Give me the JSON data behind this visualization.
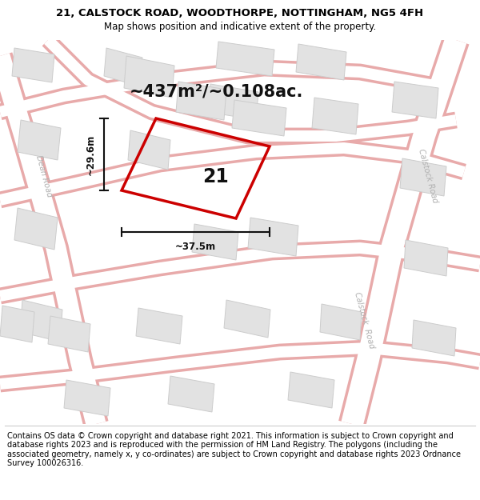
{
  "title_line1": "21, CALSTOCK ROAD, WOODTHORPE, NOTTINGHAM, NG5 4FH",
  "title_line2": "Map shows position and indicative extent of the property.",
  "area_text": "~437m²/~0.108ac.",
  "label_number": "21",
  "dim_width": "~37.5m",
  "dim_height": "~29.6m",
  "footer_text": "Contains OS data © Crown copyright and database right 2021. This information is subject to Crown copyright and database rights 2023 and is reproduced with the permission of HM Land Registry. The polygons (including the associated geometry, namely x, y co-ordinates) are subject to Crown copyright and database rights 2023 Ordnance Survey 100026316.",
  "map_bg": "#f7f7f7",
  "road_fill": "#ffffff",
  "road_edge": "#e8aaaa",
  "building_fill": "#e2e2e2",
  "building_edge": "#cccccc",
  "plot_color": "#cc0000",
  "plot_lw": 2.5,
  "dim_color": "#111111",
  "road_label_color": "#b0b0b0",
  "title_fs": 9.5,
  "subtitle_fs": 8.5,
  "area_fs": 15,
  "label_fs": 17,
  "dim_fs": 8.5,
  "footer_fs": 7.0,
  "road_lw_main": 18,
  "road_lw_small": 10,
  "road_label_fs": 7.0
}
